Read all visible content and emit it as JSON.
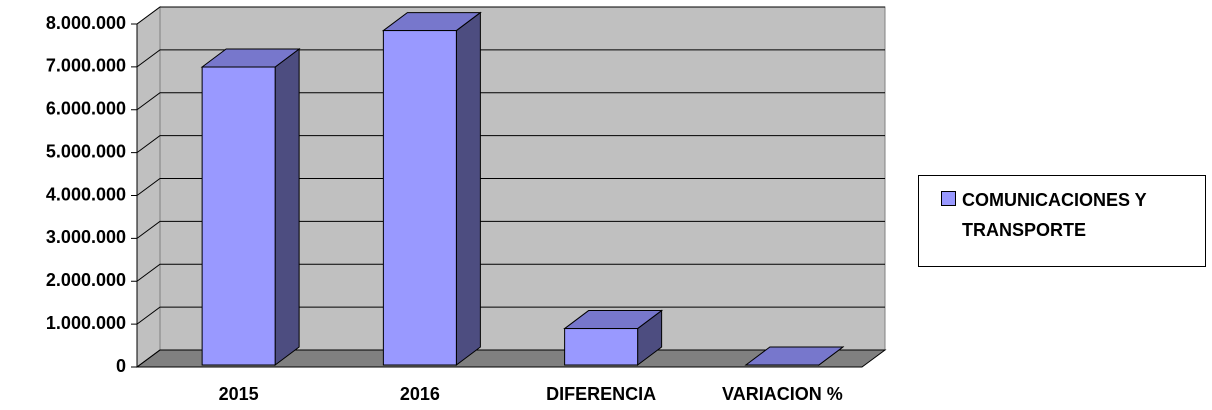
{
  "chart_data": {
    "type": "bar3d",
    "categories": [
      "2015",
      "2016",
      "DIFERENCIA",
      "VARIACION %"
    ],
    "series": [
      {
        "name": "COMUNICACIONES Y TRANSPORTE",
        "color": "#9999ff",
        "values": [
          6950000,
          7800000,
          850000,
          12
        ]
      }
    ],
    "ylim": [
      0,
      8000000
    ],
    "yticks": [
      0,
      {
        "value": 1000000,
        "label": "1.000.000"
      },
      {
        "value": 2000000,
        "label": "2.000.000"
      },
      {
        "value": 3000000,
        "label": "3.000.000"
      },
      {
        "value": 4000000,
        "label": "4.000.000"
      },
      {
        "value": 5000000,
        "label": "5.000.000"
      },
      {
        "value": 6000000,
        "label": "6.000.000"
      },
      {
        "value": 7000000,
        "label": "7.000.000"
      },
      {
        "value": 8000000,
        "label": "8.000.000"
      }
    ],
    "grid": true,
    "legend": "right"
  }
}
